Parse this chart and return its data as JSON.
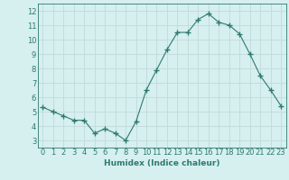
{
  "x": [
    0,
    1,
    2,
    3,
    4,
    5,
    6,
    7,
    8,
    9,
    10,
    11,
    12,
    13,
    14,
    15,
    16,
    17,
    18,
    19,
    20,
    21,
    22,
    23
  ],
  "y": [
    5.3,
    5.0,
    4.7,
    4.4,
    4.4,
    3.5,
    3.8,
    3.5,
    3.0,
    4.3,
    6.5,
    7.9,
    9.3,
    10.5,
    10.5,
    11.4,
    11.8,
    11.2,
    11.0,
    10.4,
    9.0,
    7.5,
    6.5,
    5.4
  ],
  "line_color": "#2e7b6e",
  "marker": "+",
  "marker_size": 4,
  "bg_color": "#d6efef",
  "grid_color": "#c4dcdc",
  "xlabel": "Humidex (Indice chaleur)",
  "xlim": [
    -0.5,
    23.5
  ],
  "ylim": [
    2.5,
    12.5
  ],
  "yticks": [
    3,
    4,
    5,
    6,
    7,
    8,
    9,
    10,
    11,
    12
  ],
  "xticks": [
    0,
    1,
    2,
    3,
    4,
    5,
    6,
    7,
    8,
    9,
    10,
    11,
    12,
    13,
    14,
    15,
    16,
    17,
    18,
    19,
    20,
    21,
    22,
    23
  ],
  "tick_color": "#2e7b6e",
  "label_fontsize": 6.5,
  "tick_fontsize": 6.0
}
